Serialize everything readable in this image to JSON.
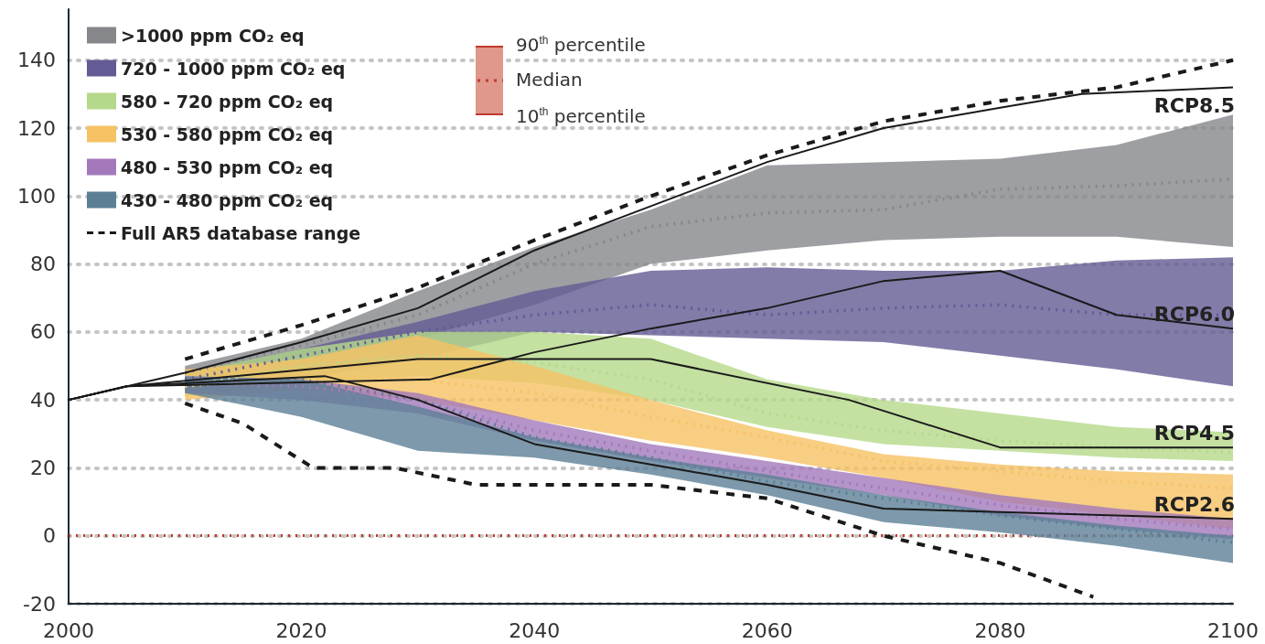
{
  "chart_data": {
    "type": "line",
    "x": [
      2010,
      2020,
      2030,
      2040,
      2050,
      2060,
      2070,
      2080,
      2090,
      2100
    ],
    "xlim": [
      2000,
      2100
    ],
    "xticks": [
      2000,
      2020,
      2040,
      2060,
      2080,
      2100
    ],
    "ylim": [
      -20,
      155
    ],
    "yticks": [
      -20,
      0,
      20,
      40,
      60,
      80,
      100,
      120,
      140
    ],
    "grid": "y",
    "legend": "top left",
    "marker": "none",
    "series": [
      {
        "name": ">1000 ppm CO₂ eq",
        "color": "#85878b",
        "line_style": "dotted",
        "values": [
          48,
          56,
          65,
          80,
          91,
          95,
          96,
          102,
          103,
          105
        ],
        "lower": [
          47,
          52,
          58,
          68,
          80,
          84,
          87,
          88,
          88,
          85
        ],
        "upper": [
          50,
          58,
          72,
          85,
          96,
          109,
          110,
          111,
          115,
          124
        ]
      },
      {
        "name": "720 - 1000 ppm CO₂ eq",
        "color": "#635b94",
        "line_style": "dotted",
        "values": [
          46,
          53,
          60,
          65,
          68,
          65,
          67,
          68,
          65,
          65
        ],
        "lower": [
          43,
          46,
          52,
          60,
          59,
          58,
          57,
          53,
          49,
          44
        ],
        "upper": [
          48,
          55,
          63,
          72,
          78,
          79,
          78,
          78,
          81,
          82
        ]
      },
      {
        "name": "580 - 720 ppm CO₂ eq",
        "color": "#b5d98a",
        "line_style": "dotted",
        "values": [
          44,
          50,
          53,
          51,
          46,
          36,
          31,
          28,
          26,
          24.5
        ],
        "lower": [
          41,
          45,
          47,
          45,
          40,
          32,
          27,
          25,
          23,
          22
        ],
        "upper": [
          48,
          55,
          60,
          60,
          58,
          46,
          40,
          36,
          32,
          30.5
        ]
      },
      {
        "name": "530 - 580 ppm CO₂ eq",
        "color": "#f6c264",
        "line_style": "dotted",
        "values": [
          44,
          47,
          46,
          42,
          35,
          29,
          22,
          19,
          16,
          14
        ],
        "lower": [
          40,
          43,
          40,
          34,
          28,
          23,
          17,
          10,
          6,
          2
        ],
        "upper": [
          49,
          52,
          59,
          50,
          40,
          31,
          24,
          21,
          19,
          18
        ]
      },
      {
        "name": "480 - 530 ppm CO₂ eq",
        "color": "#a379bb",
        "line_style": "dotted",
        "values": [
          45,
          44,
          40,
          31,
          25,
          19,
          14,
          9,
          5,
          2
        ],
        "lower": [
          42,
          40,
          36,
          28,
          22,
          17,
          12,
          6,
          2,
          -1
        ],
        "upper": [
          47,
          46,
          42,
          34,
          27,
          22,
          17,
          12,
          8,
          5
        ]
      },
      {
        "name": "430 - 480 ppm CO₂ eq",
        "color": "#5c7f96",
        "line_style": "dotted",
        "values": [
          45,
          46,
          40,
          29,
          23,
          16,
          11,
          6,
          2,
          -2
        ],
        "lower": [
          42,
          35,
          25,
          23,
          18,
          12,
          4,
          1,
          -3,
          -8
        ],
        "upper": [
          47,
          46,
          38,
          29,
          23,
          18,
          12,
          7,
          3,
          0
        ]
      },
      {
        "name": "Full AR5 database range",
        "color": "#1a1a1a",
        "line_style": "dashed",
        "x": [
          2010,
          2020,
          2030,
          2040,
          2050,
          2060,
          2070,
          2080,
          2090,
          2100
        ],
        "values": [
          52,
          62,
          73,
          87,
          100,
          112,
          122,
          128,
          132,
          140
        ]
      },
      {
        "color": "#1a1a1a",
        "line_style": "dashed",
        "x": [
          2010,
          2015,
          2021,
          2028,
          2035,
          2050,
          2060,
          2070,
          2080,
          2088
        ],
        "values": [
          39,
          33,
          20,
          20,
          15,
          15,
          11,
          0,
          -8,
          -18
        ]
      },
      {
        "name": "RCP8.5",
        "color": "#1a1a1a",
        "line_style": "solid",
        "x": [
          2000,
          2010,
          2020,
          2030,
          2040,
          2050,
          2060,
          2070,
          2080,
          2087,
          2100
        ],
        "values": [
          40,
          48,
          57,
          67,
          84,
          97,
          110,
          120,
          126,
          130,
          132
        ]
      },
      {
        "name": "RCP6.0",
        "color": "#1a1a1a",
        "line_style": "solid",
        "x": [
          2000,
          2005,
          2031,
          2040,
          2050,
          2060,
          2070,
          2080,
          2090,
          2100
        ],
        "values": [
          40,
          44,
          46,
          54,
          61,
          67,
          75,
          78,
          65,
          61
        ]
      },
      {
        "name": "RCP4.5",
        "color": "#1a1a1a",
        "line_style": "solid",
        "x": [
          2000,
          2005,
          2030,
          2050,
          2067,
          2080,
          2100
        ],
        "values": [
          40,
          44,
          52,
          52,
          40,
          26,
          26
        ]
      },
      {
        "name": "RCP2.6",
        "color": "#1a1a1a",
        "line_style": "solid",
        "x": [
          2000,
          2005,
          2022,
          2030,
          2040,
          2050,
          2060,
          2070,
          2080,
          2100
        ],
        "values": [
          40,
          44,
          47,
          40,
          27,
          21,
          15,
          8,
          7,
          5
        ]
      }
    ],
    "ref_lines": [
      {
        "axis": "y",
        "value": 0,
        "color": "#c0392b",
        "line_style": "dotted"
      }
    ],
    "annotations": [
      "90$^{th}$ percentile",
      "Median",
      "10$^{th}$ percentile"
    ]
  }
}
